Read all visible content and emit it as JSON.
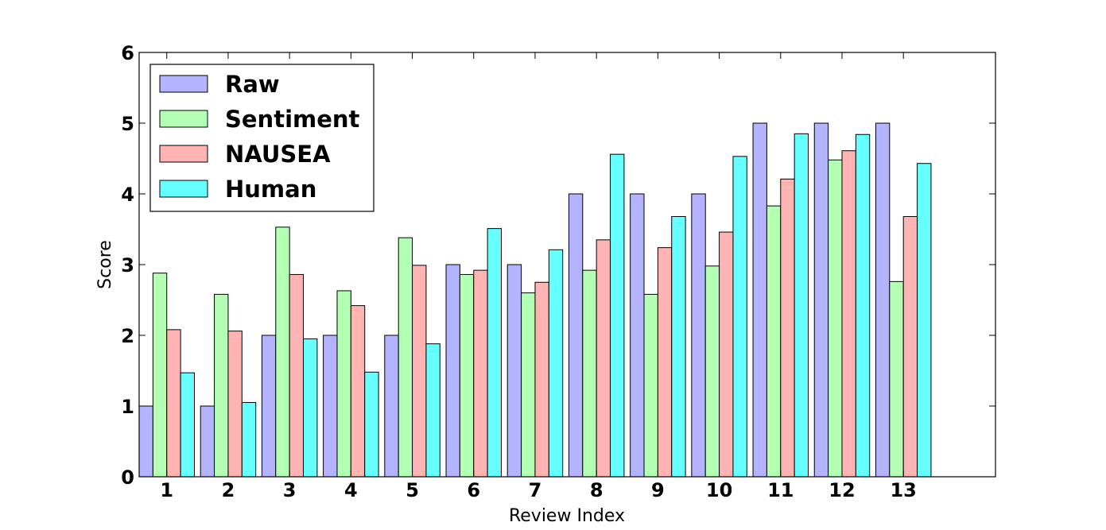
{
  "chart_data": {
    "type": "bar",
    "title": "",
    "xlabel": "Review Index",
    "ylabel": "Score",
    "ylim": [
      0,
      6
    ],
    "xlim": [
      0.55,
      14.5
    ],
    "yticks": [
      "0",
      "1",
      "2",
      "3",
      "4",
      "5",
      "6"
    ],
    "categories": [
      "1",
      "2",
      "3",
      "4",
      "5",
      "6",
      "7",
      "8",
      "9",
      "10",
      "11",
      "12",
      "13"
    ],
    "series": [
      {
        "name": "Raw",
        "color": "#b3b3ff",
        "values": [
          1,
          1,
          2,
          2,
          2,
          3,
          3,
          4,
          4,
          4,
          5,
          5,
          5
        ]
      },
      {
        "name": "Sentiment",
        "color": "#b3ffb3",
        "values": [
          2.88,
          2.58,
          3.53,
          2.63,
          3.38,
          2.86,
          2.6,
          2.92,
          2.58,
          2.98,
          3.83,
          4.48,
          2.76
        ]
      },
      {
        "name": "NAUSEA",
        "color": "#ffb3b3",
        "values": [
          2.08,
          2.06,
          2.86,
          2.42,
          2.99,
          2.92,
          2.75,
          3.35,
          3.24,
          3.46,
          4.21,
          4.61,
          3.68
        ]
      },
      {
        "name": "Human",
        "color": "#66ffff",
        "values": [
          1.47,
          1.05,
          1.95,
          1.48,
          1.88,
          3.51,
          3.21,
          4.56,
          3.68,
          4.53,
          4.85,
          4.84,
          4.43
        ]
      }
    ],
    "legend_position": "top-left",
    "grid": false
  }
}
